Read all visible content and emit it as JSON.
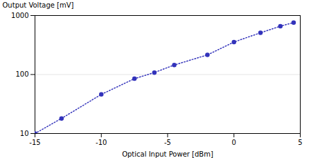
{
  "chart_data": {
    "type": "line",
    "x": [
      -15,
      -13,
      -10,
      -7.5,
      -6,
      -4.5,
      -2,
      0,
      2,
      3.5,
      4.5
    ],
    "values": [
      10,
      18,
      46,
      85,
      108,
      145,
      215,
      355,
      510,
      660,
      760
    ],
    "color": "#3333bb",
    "marker": "o",
    "line_style": "dotted",
    "xlabel": "Optical Input Power [dBm]",
    "ylabel": "Output Voltage [mV]",
    "xlim": [
      -15,
      5
    ],
    "ylim": [
      10,
      1000
    ],
    "xticks": [
      -15,
      -10,
      -5,
      0,
      5
    ],
    "yticks": [
      10,
      100,
      1000
    ],
    "log": "y",
    "grid": "y"
  }
}
